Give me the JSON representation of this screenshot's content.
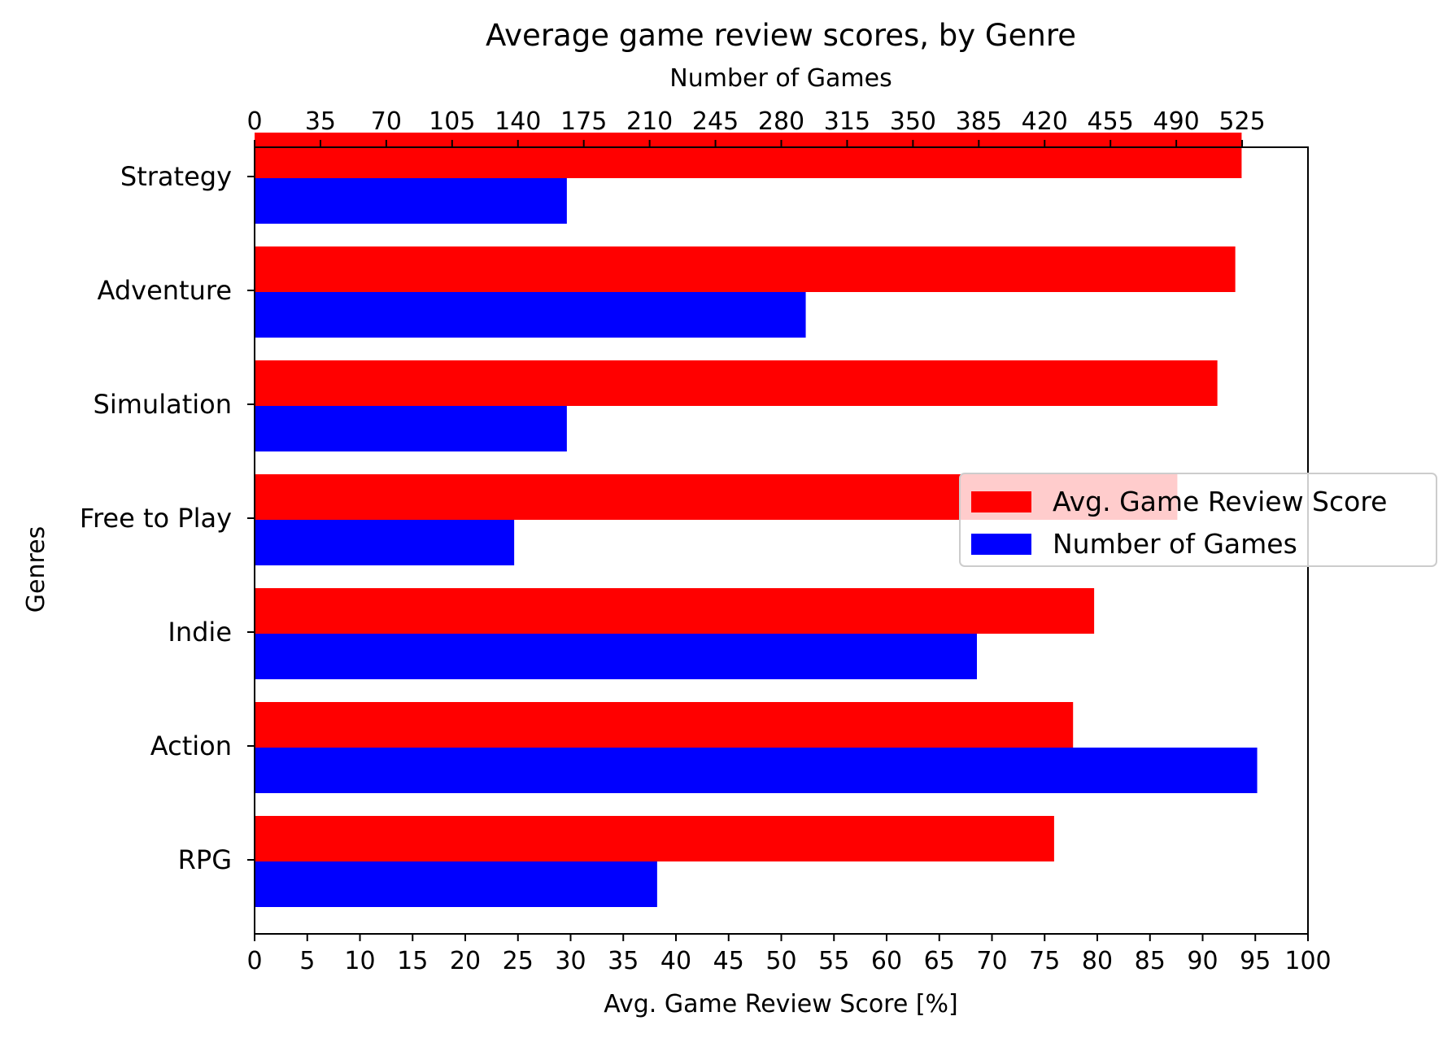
{
  "chart_data": {
    "type": "bar",
    "orientation": "horizontal",
    "title": "Average game review scores, by Genre",
    "ylabel": "Genres",
    "bottom_axis": {
      "label": "Avg. Game Review Score [%]",
      "range": [
        0,
        100
      ],
      "ticks": [
        0,
        5,
        10,
        15,
        20,
        25,
        30,
        35,
        40,
        45,
        50,
        55,
        60,
        65,
        70,
        75,
        80,
        85,
        90,
        95,
        100
      ]
    },
    "top_axis": {
      "label": "Number of Games",
      "range": [
        0,
        560
      ],
      "ticks": [
        0,
        35,
        70,
        105,
        140,
        175,
        210,
        245,
        280,
        315,
        350,
        385,
        420,
        455,
        490,
        525
      ]
    },
    "categories": [
      "Strategy",
      "Adventure",
      "Simulation",
      "Free to Play",
      "Indie",
      "Action",
      "RPG"
    ],
    "series": [
      {
        "name": "Avg. Game Review Score",
        "axis": "bottom",
        "color": "#ff0000",
        "values": [
          93.7,
          93.1,
          91.4,
          87.6,
          79.7,
          77.7,
          75.9
        ]
      },
      {
        "name": "Number of Games",
        "axis": "top",
        "color": "#0000ff",
        "values": [
          166,
          293,
          166,
          138,
          384,
          533,
          214
        ]
      }
    ],
    "legend": {
      "position": "center-right",
      "entries": [
        "Avg. Game Review Score",
        "Number of Games"
      ]
    },
    "grid": false
  }
}
